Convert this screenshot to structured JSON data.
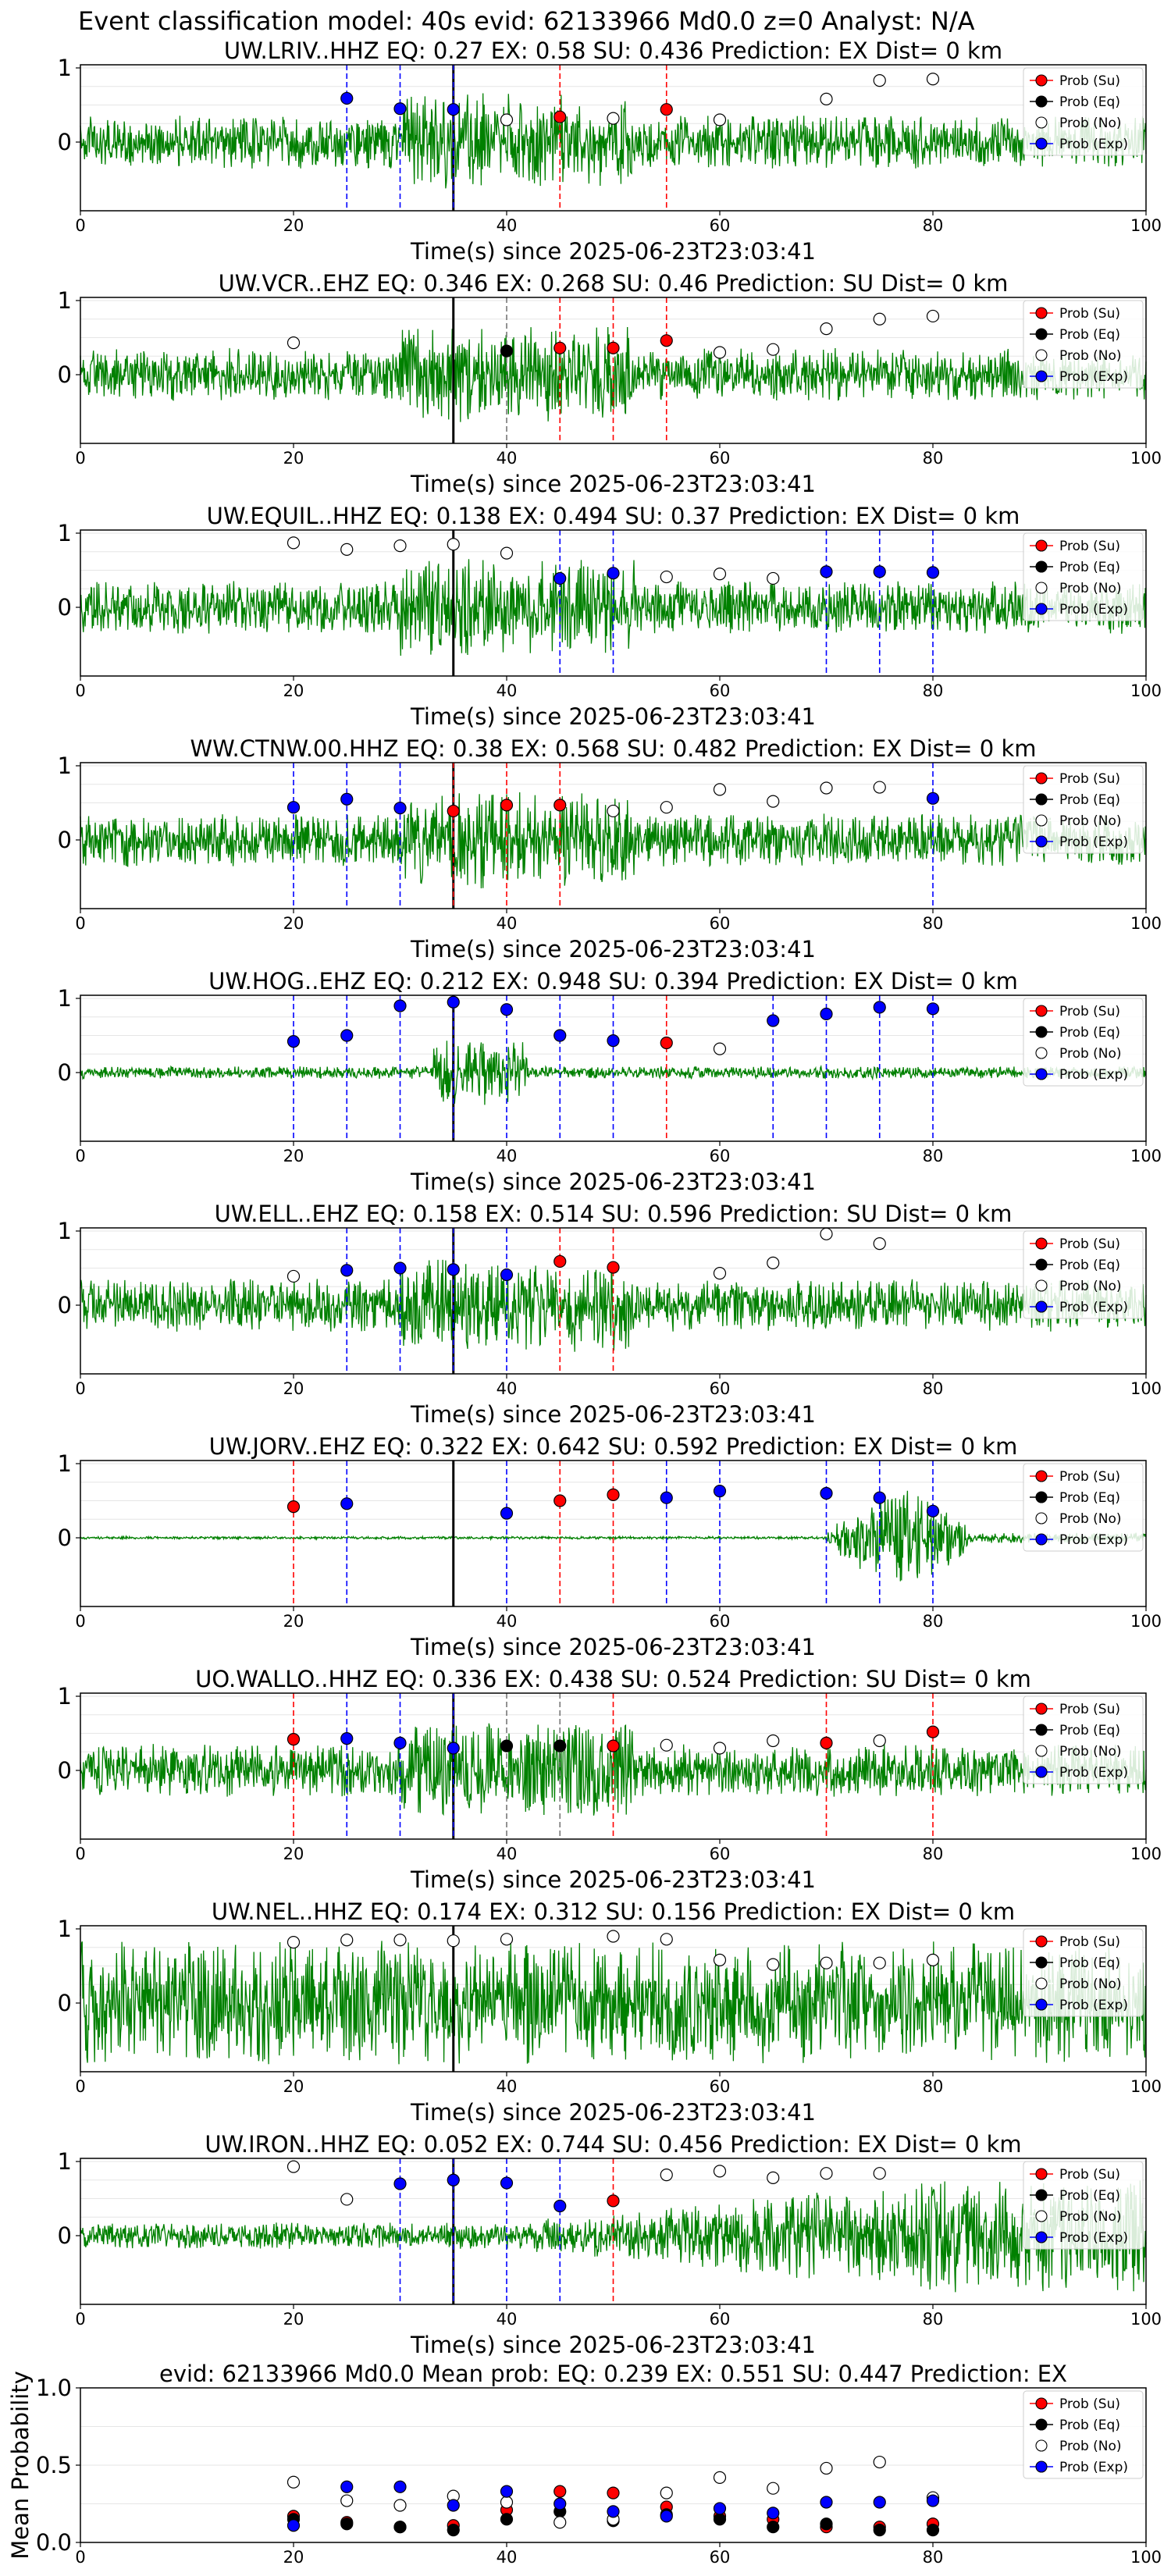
{
  "figure_title": "Event classification model: 40s evid: 62133966 Md0.0 z=0 Analyst: N/A",
  "legend_labels": [
    "Prob (Su)",
    "Prob (Eq)",
    "Prob (No)",
    "Prob (Exp)"
  ],
  "colors": {
    "su": "#ff0000",
    "eq": "#000000",
    "no": "#ffffff",
    "exp": "#0000ff",
    "trace": "#008000"
  },
  "chart_data": [
    {
      "type": "line",
      "title": "UW.LRIV..HHZ   EQ: 0.27   EX: 0.58   SU: 0.436   Prediction: EX    Dist= 0 km",
      "xlabel": "Time(s) since 2025-06-23T23:03:41",
      "ylabel": "",
      "xlim": [
        0,
        100
      ],
      "xticks": [
        0,
        20,
        40,
        60,
        80,
        100
      ],
      "yticks": [
        0,
        1
      ],
      "onset_time": 35,
      "trace_amplitude": "medium",
      "series": [
        {
          "name": "Prob (Su)",
          "x": [
            45,
            55
          ],
          "y": [
            0.34,
            0.44
          ]
        },
        {
          "name": "Prob (Eq)",
          "x": [],
          "y": []
        },
        {
          "name": "Prob (No)",
          "x": [
            40,
            50,
            60,
            70,
            75,
            80
          ],
          "y": [
            0.3,
            0.32,
            0.3,
            0.58,
            0.83,
            0.85
          ]
        },
        {
          "name": "Prob (Exp)",
          "x": [
            25,
            30,
            35
          ],
          "y": [
            0.59,
            0.45,
            0.44
          ]
        }
      ]
    },
    {
      "type": "line",
      "title": "UW.VCR..EHZ   EQ: 0.346  EX: 0.268  SU: 0.46   Prediction: SU    Dist= 0 km",
      "xlabel": "Time(s) since 2025-06-23T23:03:41",
      "ylabel": "",
      "xlim": [
        0,
        100
      ],
      "xticks": [
        0,
        20,
        40,
        60,
        80,
        100
      ],
      "yticks": [
        0,
        1
      ],
      "onset_time": 35,
      "trace_amplitude": "medium",
      "series": [
        {
          "name": "Prob (Su)",
          "x": [
            45,
            50,
            55
          ],
          "y": [
            0.36,
            0.36,
            0.46
          ]
        },
        {
          "name": "Prob (Eq)",
          "x": [
            40
          ],
          "y": [
            0.32
          ]
        },
        {
          "name": "Prob (No)",
          "x": [
            20,
            60,
            65,
            70,
            75,
            80
          ],
          "y": [
            0.43,
            0.3,
            0.34,
            0.62,
            0.75,
            0.79
          ]
        },
        {
          "name": "Prob (Exp)",
          "x": [],
          "y": []
        }
      ]
    },
    {
      "type": "line",
      "title": "UW.EQUIL..HHZ   EQ: 0.138  EX: 0.494  SU: 0.37   Prediction: EX    Dist= 0 km",
      "xlabel": "Time(s) since 2025-06-23T23:03:41",
      "ylabel": "",
      "xlim": [
        0,
        100
      ],
      "xticks": [
        0,
        20,
        40,
        60,
        80,
        100
      ],
      "yticks": [
        0,
        1
      ],
      "onset_time": 35,
      "trace_amplitude": "medium",
      "series": [
        {
          "name": "Prob (Su)",
          "x": [],
          "y": []
        },
        {
          "name": "Prob (Eq)",
          "x": [],
          "y": []
        },
        {
          "name": "Prob (No)",
          "x": [
            20,
            25,
            30,
            35,
            40,
            55,
            60,
            65
          ],
          "y": [
            0.87,
            0.78,
            0.83,
            0.85,
            0.73,
            0.41,
            0.45,
            0.39
          ]
        },
        {
          "name": "Prob (Exp)",
          "x": [
            45,
            50,
            70,
            75,
            80
          ],
          "y": [
            0.39,
            0.46,
            0.48,
            0.48,
            0.47
          ]
        }
      ]
    },
    {
      "type": "line",
      "title": "WW.CTNW.00.HHZ   EQ: 0.38  EX: 0.568  SU: 0.482   Prediction: EX    Dist= 0 km",
      "xlabel": "Time(s) since 2025-06-23T23:03:41",
      "ylabel": "",
      "xlim": [
        0,
        100
      ],
      "xticks": [
        0,
        20,
        40,
        60,
        80,
        100
      ],
      "yticks": [
        0,
        1
      ],
      "onset_time": 35,
      "trace_amplitude": "medium",
      "series": [
        {
          "name": "Prob (Su)",
          "x": [
            35,
            40,
            45
          ],
          "y": [
            0.39,
            0.47,
            0.47
          ]
        },
        {
          "name": "Prob (Eq)",
          "x": [],
          "y": []
        },
        {
          "name": "Prob (No)",
          "x": [
            50,
            55,
            60,
            65,
            70,
            75
          ],
          "y": [
            0.39,
            0.44,
            0.68,
            0.52,
            0.7,
            0.71
          ]
        },
        {
          "name": "Prob (Exp)",
          "x": [
            20,
            25,
            30,
            80
          ],
          "y": [
            0.44,
            0.55,
            0.43,
            0.56
          ]
        }
      ]
    },
    {
      "type": "line",
      "title": "UW.HOG..EHZ   EQ: 0.212  EX: 0.948  SU: 0.394   Prediction: EX    Dist= 0 km",
      "xlabel": "Time(s) since 2025-06-23T23:03:41",
      "ylabel": "",
      "xlim": [
        0,
        100
      ],
      "xticks": [
        0,
        20,
        40,
        60,
        80,
        100
      ],
      "yticks": [
        0,
        1
      ],
      "onset_time": 35,
      "trace_amplitude": "low",
      "series": [
        {
          "name": "Prob (Su)",
          "x": [
            55
          ],
          "y": [
            0.4
          ]
        },
        {
          "name": "Prob (Eq)",
          "x": [],
          "y": []
        },
        {
          "name": "Prob (No)",
          "x": [
            60
          ],
          "y": [
            0.32
          ]
        },
        {
          "name": "Prob (Exp)",
          "x": [
            20,
            25,
            30,
            35,
            40,
            45,
            50,
            65,
            70,
            75,
            80
          ],
          "y": [
            0.42,
            0.5,
            0.9,
            0.95,
            0.85,
            0.5,
            0.43,
            0.7,
            0.79,
            0.88,
            0.86
          ]
        }
      ]
    },
    {
      "type": "line",
      "title": "UW.ELL..EHZ   EQ: 0.158  EX: 0.514  SU: 0.596   Prediction: SU    Dist= 0 km",
      "xlabel": "Time(s) since 2025-06-23T23:03:41",
      "ylabel": "",
      "xlim": [
        0,
        100
      ],
      "xticks": [
        0,
        20,
        40,
        60,
        80,
        100
      ],
      "yticks": [
        0,
        1
      ],
      "onset_time": 35,
      "trace_amplitude": "medium",
      "series": [
        {
          "name": "Prob (Su)",
          "x": [
            45,
            50
          ],
          "y": [
            0.59,
            0.51
          ]
        },
        {
          "name": "Prob (Eq)",
          "x": [],
          "y": []
        },
        {
          "name": "Prob (No)",
          "x": [
            20,
            60,
            65,
            70,
            75
          ],
          "y": [
            0.39,
            0.43,
            0.57,
            0.96,
            0.83
          ]
        },
        {
          "name": "Prob (Exp)",
          "x": [
            25,
            30,
            35,
            40
          ],
          "y": [
            0.47,
            0.5,
            0.48,
            0.41
          ]
        }
      ]
    },
    {
      "type": "line",
      "title": "UW.JORV..EHZ   EQ: 0.322  EX: 0.642  SU: 0.592   Prediction: EX    Dist= 0 km",
      "xlabel": "Time(s) since 2025-06-23T23:03:41",
      "ylabel": "",
      "xlim": [
        0,
        100
      ],
      "xticks": [
        0,
        20,
        40,
        60,
        80,
        100
      ],
      "yticks": [
        0,
        1
      ],
      "onset_time": 35,
      "trace_amplitude": "flat-burst",
      "series": [
        {
          "name": "Prob (Su)",
          "x": [
            20,
            45,
            50
          ],
          "y": [
            0.42,
            0.5,
            0.58
          ]
        },
        {
          "name": "Prob (Eq)",
          "x": [],
          "y": []
        },
        {
          "name": "Prob (No)",
          "x": [],
          "y": []
        },
        {
          "name": "Prob (Exp)",
          "x": [
            25,
            40,
            55,
            60,
            70,
            75,
            80
          ],
          "y": [
            0.46,
            0.33,
            0.54,
            0.63,
            0.6,
            0.54,
            0.36
          ]
        }
      ]
    },
    {
      "type": "line",
      "title": "UO.WALLO..HHZ   EQ: 0.336  EX: 0.438  SU: 0.524   Prediction: SU    Dist= 0 km",
      "xlabel": "Time(s) since 2025-06-23T23:03:41",
      "ylabel": "",
      "xlim": [
        0,
        100
      ],
      "xticks": [
        0,
        20,
        40,
        60,
        80,
        100
      ],
      "yticks": [
        0,
        1
      ],
      "onset_time": 35,
      "trace_amplitude": "medium",
      "series": [
        {
          "name": "Prob (Su)",
          "x": [
            20,
            50,
            70,
            80
          ],
          "y": [
            0.42,
            0.33,
            0.37,
            0.52
          ]
        },
        {
          "name": "Prob (Eq)",
          "x": [
            40,
            45
          ],
          "y": [
            0.33,
            0.33
          ]
        },
        {
          "name": "Prob (No)",
          "x": [
            55,
            60,
            65,
            75
          ],
          "y": [
            0.34,
            0.3,
            0.4,
            0.4
          ]
        },
        {
          "name": "Prob (Exp)",
          "x": [
            25,
            30,
            35
          ],
          "y": [
            0.43,
            0.37,
            0.3
          ]
        }
      ]
    },
    {
      "type": "line",
      "title": "UW.NEL..HHZ   EQ: 0.174  EX: 0.312  SU: 0.156   Prediction: EX    Dist= 0 km",
      "xlabel": "Time(s) since 2025-06-23T23:03:41",
      "ylabel": "",
      "xlim": [
        0,
        100
      ],
      "xticks": [
        0,
        20,
        40,
        60,
        80,
        100
      ],
      "yticks": [
        0,
        1
      ],
      "onset_time": 35,
      "trace_amplitude": "high",
      "series": [
        {
          "name": "Prob (Su)",
          "x": [],
          "y": []
        },
        {
          "name": "Prob (Eq)",
          "x": [],
          "y": []
        },
        {
          "name": "Prob (No)",
          "x": [
            20,
            25,
            30,
            35,
            40,
            50,
            55,
            60,
            65,
            70,
            75,
            80
          ],
          "y": [
            0.82,
            0.85,
            0.85,
            0.84,
            0.86,
            0.9,
            0.86,
            0.58,
            0.52,
            0.54,
            0.54,
            0.58
          ]
        },
        {
          "name": "Prob (Exp)",
          "x": [],
          "y": []
        }
      ]
    },
    {
      "type": "line",
      "title": "UW.IRON..HHZ   EQ: 0.052  EX: 0.744  SU: 0.456   Prediction: EX    Dist= 0 km",
      "xlabel": "Time(s) since 2025-06-23T23:03:41",
      "ylabel": "",
      "xlim": [
        0,
        100
      ],
      "xticks": [
        0,
        20,
        40,
        60,
        80,
        100
      ],
      "yticks": [
        0,
        1
      ],
      "onset_time": 35,
      "trace_amplitude": "growing",
      "series": [
        {
          "name": "Prob (Su)",
          "x": [
            50
          ],
          "y": [
            0.47
          ]
        },
        {
          "name": "Prob (Eq)",
          "x": [],
          "y": []
        },
        {
          "name": "Prob (No)",
          "x": [
            20,
            25,
            55,
            60,
            65,
            70,
            75
          ],
          "y": [
            0.93,
            0.49,
            0.82,
            0.87,
            0.78,
            0.84,
            0.84
          ]
        },
        {
          "name": "Prob (Exp)",
          "x": [
            30,
            35,
            40,
            45
          ],
          "y": [
            0.7,
            0.75,
            0.71,
            0.4
          ]
        }
      ]
    },
    {
      "type": "scatter",
      "title": "evid: 62133966  Md0.0   Mean prob:   EQ: 0.239  EX: 0.551  SU: 0.447   Prediction: EX",
      "xlabel": "",
      "ylabel": "Mean Probability",
      "xlim": [
        0,
        100
      ],
      "ylim": [
        0,
        1
      ],
      "xticks": [
        0,
        20,
        40,
        60,
        80,
        100
      ],
      "yticks": [
        0.0,
        0.5,
        1.0
      ],
      "series": [
        {
          "name": "Prob (Su)",
          "x": [
            20,
            25,
            30,
            35,
            40,
            45,
            50,
            55,
            60,
            65,
            70,
            75,
            80
          ],
          "y": [
            0.17,
            0.13,
            0.1,
            0.11,
            0.21,
            0.33,
            0.32,
            0.23,
            0.17,
            0.15,
            0.1,
            0.1,
            0.12
          ]
        },
        {
          "name": "Prob (Eq)",
          "x": [
            20,
            25,
            30,
            35,
            40,
            45,
            50,
            55,
            60,
            65,
            70,
            75,
            80
          ],
          "y": [
            0.15,
            0.12,
            0.1,
            0.08,
            0.15,
            0.2,
            0.14,
            0.18,
            0.15,
            0.1,
            0.12,
            0.08,
            0.08
          ]
        },
        {
          "name": "Prob (No)",
          "x": [
            20,
            25,
            30,
            35,
            40,
            45,
            50,
            55,
            60,
            65,
            70,
            75,
            80
          ],
          "y": [
            0.39,
            0.27,
            0.24,
            0.3,
            0.26,
            0.13,
            0.15,
            0.32,
            0.42,
            0.35,
            0.48,
            0.52,
            0.29
          ]
        },
        {
          "name": "Prob (Exp)",
          "x": [
            20,
            25,
            30,
            35,
            40,
            45,
            50,
            55,
            60,
            65,
            70,
            75,
            80
          ],
          "y": [
            0.11,
            0.36,
            0.36,
            0.24,
            0.33,
            0.25,
            0.2,
            0.17,
            0.22,
            0.19,
            0.26,
            0.26,
            0.27
          ]
        }
      ]
    }
  ]
}
